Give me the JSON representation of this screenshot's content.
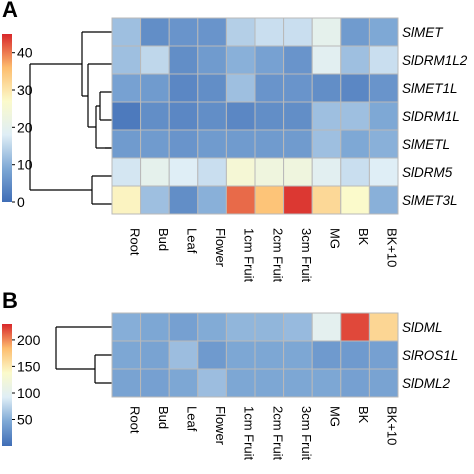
{
  "chart_data": [
    {
      "type": "heatmap",
      "panel": "A",
      "columns": [
        "Root",
        "Bud",
        "Leaf",
        "Flower",
        "1cm Fruit",
        "2cm Fruit",
        "3cm Fruit",
        "MG",
        "BK",
        "BK+10"
      ],
      "rows": [
        "SlMET",
        "SlDRM1L2",
        "SlMET1L",
        "SlDRM1L",
        "SlMETL",
        "SlDRM5",
        "SlMET3L"
      ],
      "values": [
        [
          12,
          5,
          6,
          6,
          14,
          16,
          16,
          20,
          7,
          9
        ],
        [
          12,
          15,
          5,
          7,
          10,
          8,
          6,
          19,
          12,
          16
        ],
        [
          8,
          7,
          4,
          5,
          12,
          6,
          6,
          5,
          4,
          6
        ],
        [
          2,
          5,
          4,
          5,
          4,
          5,
          5,
          12,
          12,
          9
        ],
        [
          7,
          7,
          6,
          7,
          7,
          7,
          7,
          12,
          9,
          10
        ],
        [
          17,
          20,
          18,
          16,
          25,
          23,
          23,
          19,
          16,
          18
        ],
        [
          28,
          12,
          5,
          10,
          41,
          35,
          44,
          32,
          27,
          10
        ]
      ],
      "colorbar": {
        "min": 0,
        "max": 45,
        "ticks": [
          0,
          10,
          20,
          30,
          40
        ]
      },
      "colormap": [
        "#3f6db6",
        "#7ea8d5",
        "#dfeef6",
        "#fbfacb",
        "#fdbd6e",
        "#d8272b"
      ],
      "row_dendrogram": true
    },
    {
      "type": "heatmap",
      "panel": "B",
      "columns": [
        "Root",
        "Bud",
        "Leaf",
        "Flower",
        "1cm Fruit",
        "2cm Fruit",
        "3cm Fruit",
        "MG",
        "BK",
        "BK+10"
      ],
      "rows": [
        "SlDML",
        "SlROS1L",
        "SlDML2"
      ],
      "values": [
        [
          50,
          45,
          40,
          48,
          55,
          55,
          58,
          100,
          220,
          165
        ],
        [
          45,
          42,
          60,
          35,
          45,
          45,
          45,
          35,
          35,
          40
        ],
        [
          42,
          40,
          45,
          60,
          45,
          45,
          45,
          45,
          40,
          42
        ]
      ],
      "colorbar": {
        "min": 0,
        "max": 230,
        "ticks": [
          50,
          100,
          150,
          200
        ]
      },
      "colormap": [
        "#3f6db6",
        "#7ea8d5",
        "#dfeef6",
        "#fbfacb",
        "#fdbd6e",
        "#d8272b"
      ],
      "row_dendrogram": true
    }
  ],
  "panel_labels": [
    "A",
    "B"
  ]
}
